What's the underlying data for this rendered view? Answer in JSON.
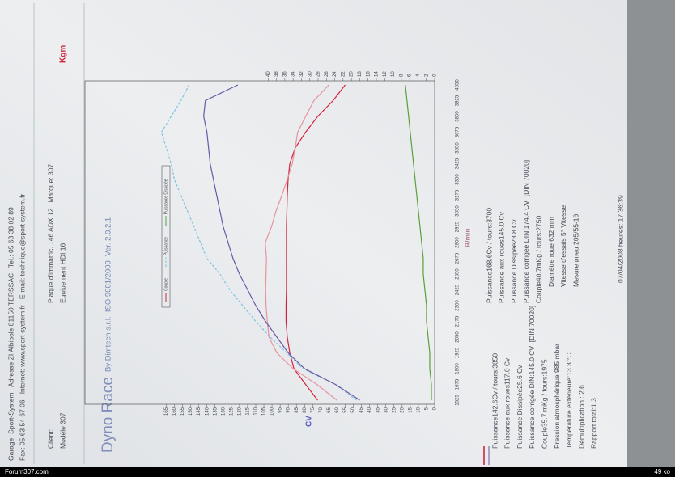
{
  "header": {
    "line1": "Garage: Sport-System   Adresse:ZI Albipole 81150 TERSSAC   Tel.: 05 63 38 02 89",
    "line2": "Fax: 05 63 54 67 06   Internet: www.sport-system.fr   E-mail: technique@sport-system.fr"
  },
  "client": {
    "client_label": "Client:",
    "model": "Modèle 307",
    "plate": "Plaque d'immatric. 146 ADX 12   Marque: 307",
    "equipment": "Equipement HDI 16"
  },
  "chart_data": {
    "type": "line",
    "title": "Dyno Race",
    "subtitle": "By Dimtech s.r.l.  ISO 9001/2000  Ver. 2.0.2.1",
    "y_label": "CV",
    "y2_label": "Kgm",
    "x_label": "R/min",
    "categories": [
      "1525",
      "1675",
      "1800",
      "1925",
      "2050",
      "2175",
      "2300",
      "2425",
      "2550",
      "2675",
      "2800",
      "2925",
      "3050",
      "3175",
      "3300",
      "3425",
      "3550",
      "3675",
      "3800",
      "3925",
      "4050"
    ],
    "series": [
      {
        "name": "Couple",
        "color": "#d2243c",
        "axis": "y2",
        "values": [
          28.1,
          31.0,
          33.8,
          34.8,
          35.4,
          35.7,
          35.7,
          35.6,
          35.6,
          35.6,
          35.6,
          35.6,
          35.5,
          35.4,
          35.2,
          34.8,
          33.5,
          31.0,
          28.1,
          24.4,
          21.5
        ]
      },
      {
        "name": "Puissance",
        "color": "#7fc4e0",
        "dashed": true,
        "values": [
          48,
          61,
          81,
          91,
          101,
          110,
          118,
          126,
          132,
          140,
          144,
          148,
          152,
          156,
          160,
          162,
          165,
          168,
          162,
          156,
          151
        ]
      },
      {
        "name": "Puissance Dissipée",
        "color": "#5a9e3c",
        "values": [
          2,
          2,
          3,
          3,
          4,
          5,
          5,
          6,
          7,
          7,
          8,
          9,
          10,
          11,
          12,
          13,
          14,
          15,
          16,
          17,
          18
        ]
      },
      {
        "color": "#e6939f",
        "axis": "y2",
        "values": [
          23.5,
          28.3,
          34.0,
          37.9,
          39.8,
          40.2,
          40.5,
          40.6,
          40.5,
          40.4,
          40.7,
          39.2,
          38.1,
          36.7,
          35.4,
          34.2,
          33.5,
          32.9,
          31.0,
          29.0,
          25.4
        ]
      },
      {
        "color": "#6a58a6",
        "values": [
          46,
          61,
          80,
          90,
          97,
          104,
          110,
          115,
          120,
          124,
          127,
          130,
          132,
          134,
          136,
          138,
          139,
          140,
          142,
          141,
          121
        ]
      }
    ],
    "ylim": [
      0,
      215
    ],
    "yticks": [
      0,
      5,
      10,
      15,
      20,
      25,
      30,
      35,
      40,
      45,
      50,
      55,
      60,
      65,
      70,
      75,
      80,
      85,
      90,
      95,
      100,
      105,
      110,
      115,
      120,
      125,
      130,
      135,
      140,
      145,
      150,
      155,
      160,
      165
    ],
    "y2lim": [
      0,
      84
    ],
    "y2ticks": [
      0,
      2,
      4,
      6,
      8,
      10,
      12,
      14,
      16,
      18,
      20,
      22,
      24,
      26,
      28,
      30,
      32,
      34,
      36,
      38,
      40
    ],
    "grid": false
  },
  "results_left": [
    "Puissance142.6Cv / tours:3850",
    "Puissance aux roues117.0 Cv",
    "Puissance Dissipée25.6 Cv",
    "Puissance corrigée DIN:145.0 CV  [DIN 70020]",
    "Couple35.7 mKg / tours:1975",
    "Pression atmosphérique 985 mbar",
    "Température extérieure:13.3 °C",
    "Démultiplication : 2.6",
    "Rapport total:1.3"
  ],
  "results_right": [
    "Puissance168.6Cv / tours:3700",
    "Puissance aux roues145.0 Cv",
    "Puissance Dissipée23.8 Cv",
    "Puissance corrigée DIN:174.4 CV  [DIN 70020]",
    "Couple40.7mKg / tours:2750",
    "Diamètre roue 632 mm",
    "Vitesse d'essais 5° Vitesse",
    "Mesure pneu 205/55-16"
  ],
  "footer": "07/04/2008 heures: 17:36:39",
  "bar": {
    "site": "Forum307.com",
    "size": "49 ko"
  }
}
